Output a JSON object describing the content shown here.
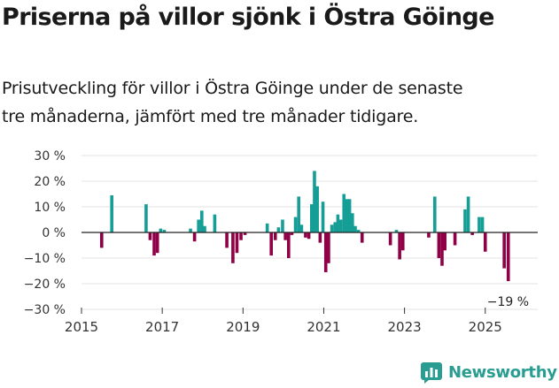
{
  "header": {
    "title": "Priserna på villor sjönk i Östra Göinge",
    "subtitle_line1": "Prisutveckling för villor i Östra Göinge under de senaste",
    "subtitle_line2": "tre månaderna, jämfört med tre månader tidigare."
  },
  "brand": {
    "name": "Newsworthy"
  },
  "colors": {
    "positive": "#159e96",
    "negative": "#8f0047",
    "zero_line": "#222222",
    "grid": "#e3e3e3"
  },
  "chart_data": {
    "type": "bar",
    "title": "Priserna på villor sjönk i Östra Göinge",
    "xlabel": "",
    "ylabel": "",
    "ylim": [
      -30,
      30
    ],
    "yticks": [
      30,
      20,
      10,
      0,
      -10,
      -20,
      -30
    ],
    "ytick_labels": [
      "30 %",
      "20 %",
      "10 %",
      "0 %",
      "−10 %",
      "−20 %",
      "−30 %"
    ],
    "xlim": [
      2015,
      2026.3
    ],
    "xticks": [
      2015,
      2017,
      2019,
      2021,
      2023,
      2025
    ],
    "xtick_labels": [
      "2015",
      "2017",
      "2019",
      "2021",
      "2023",
      "2025"
    ],
    "annotation": {
      "text": "−19 %",
      "x": 2025.6,
      "y": -19
    },
    "series": [
      {
        "name": "Prisutveckling",
        "points": [
          {
            "x": 2015.5,
            "y": -6
          },
          {
            "x": 2015.75,
            "y": 14.5
          },
          {
            "x": 2016.6,
            "y": 11
          },
          {
            "x": 2016.7,
            "y": -3
          },
          {
            "x": 2016.8,
            "y": -9
          },
          {
            "x": 2016.88,
            "y": -8
          },
          {
            "x": 2016.96,
            "y": 1.5
          },
          {
            "x": 2017.05,
            "y": 1
          },
          {
            "x": 2017.7,
            "y": 1.5
          },
          {
            "x": 2017.8,
            "y": -3.5
          },
          {
            "x": 2017.9,
            "y": 5
          },
          {
            "x": 2017.98,
            "y": 8.5
          },
          {
            "x": 2018.05,
            "y": 2.5
          },
          {
            "x": 2018.3,
            "y": 7
          },
          {
            "x": 2018.6,
            "y": -6
          },
          {
            "x": 2018.75,
            "y": -12
          },
          {
            "x": 2018.85,
            "y": -8
          },
          {
            "x": 2018.95,
            "y": -3
          },
          {
            "x": 2019.05,
            "y": -1
          },
          {
            "x": 2019.6,
            "y": 3.5
          },
          {
            "x": 2019.7,
            "y": -9
          },
          {
            "x": 2019.8,
            "y": -3
          },
          {
            "x": 2019.88,
            "y": 2
          },
          {
            "x": 2019.98,
            "y": 5
          },
          {
            "x": 2020.05,
            "y": -3
          },
          {
            "x": 2020.13,
            "y": -10
          },
          {
            "x": 2020.21,
            "y": -1
          },
          {
            "x": 2020.3,
            "y": 6
          },
          {
            "x": 2020.38,
            "y": 14
          },
          {
            "x": 2020.45,
            "y": 3
          },
          {
            "x": 2020.55,
            "y": -2
          },
          {
            "x": 2020.63,
            "y": -2.5
          },
          {
            "x": 2020.7,
            "y": 11
          },
          {
            "x": 2020.77,
            "y": 24
          },
          {
            "x": 2020.84,
            "y": 18
          },
          {
            "x": 2020.91,
            "y": -4
          },
          {
            "x": 2020.98,
            "y": 12
          },
          {
            "x": 2021.05,
            "y": -15.5
          },
          {
            "x": 2021.12,
            "y": -12
          },
          {
            "x": 2021.2,
            "y": 3
          },
          {
            "x": 2021.28,
            "y": 4
          },
          {
            "x": 2021.35,
            "y": 7
          },
          {
            "x": 2021.42,
            "y": 5
          },
          {
            "x": 2021.5,
            "y": 15
          },
          {
            "x": 2021.57,
            "y": 13
          },
          {
            "x": 2021.64,
            "y": 13
          },
          {
            "x": 2021.71,
            "y": 7.5
          },
          {
            "x": 2021.78,
            "y": 2.5
          },
          {
            "x": 2021.86,
            "y": 1
          },
          {
            "x": 2021.95,
            "y": -4
          },
          {
            "x": 2022.65,
            "y": -5
          },
          {
            "x": 2022.8,
            "y": 1
          },
          {
            "x": 2022.88,
            "y": -10.5
          },
          {
            "x": 2022.96,
            "y": -7
          },
          {
            "x": 2023.6,
            "y": -2
          },
          {
            "x": 2023.75,
            "y": 14
          },
          {
            "x": 2023.85,
            "y": -10
          },
          {
            "x": 2023.93,
            "y": -13
          },
          {
            "x": 2024.0,
            "y": -7
          },
          {
            "x": 2024.25,
            "y": -5
          },
          {
            "x": 2024.5,
            "y": 9
          },
          {
            "x": 2024.58,
            "y": 14
          },
          {
            "x": 2024.68,
            "y": -1
          },
          {
            "x": 2024.85,
            "y": 6
          },
          {
            "x": 2024.93,
            "y": 6
          },
          {
            "x": 2025.0,
            "y": -7.5
          },
          {
            "x": 2025.47,
            "y": -14
          },
          {
            "x": 2025.57,
            "y": -19
          }
        ]
      }
    ]
  }
}
